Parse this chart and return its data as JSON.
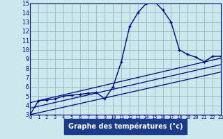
{
  "xlabel": "Graphe des températures (°c)",
  "bg_color": "#cde8ec",
  "line_color": "#00008b",
  "grid_color": "#9bbfc4",
  "xlabel_bg": "#2244aa",
  "xlabel_fg": "#ffffff",
  "ylim": [
    3,
    15
  ],
  "xlim": [
    0,
    23
  ],
  "yticks": [
    3,
    4,
    5,
    6,
    7,
    8,
    9,
    10,
    11,
    12,
    13,
    14,
    15
  ],
  "xticks": [
    0,
    1,
    2,
    3,
    4,
    5,
    6,
    7,
    8,
    9,
    10,
    11,
    12,
    13,
    14,
    15,
    16,
    17,
    18,
    19,
    20,
    21,
    22,
    23
  ],
  "curve1_x": [
    0,
    1,
    2,
    3,
    4,
    5,
    6,
    7,
    8,
    9,
    10,
    11,
    12,
    13,
    14,
    15,
    16,
    17,
    18,
    19,
    20,
    21,
    22,
    23
  ],
  "curve1_y": [
    3.0,
    4.5,
    4.6,
    4.7,
    5.0,
    5.1,
    5.2,
    5.3,
    5.4,
    4.7,
    6.0,
    8.7,
    12.5,
    14.0,
    15.0,
    15.2,
    14.3,
    13.0,
    10.0,
    9.5,
    9.2,
    8.7,
    9.3,
    9.3
  ],
  "line2_x": [
    0,
    23
  ],
  "line2_y": [
    3.0,
    7.6
  ],
  "line3_x": [
    0,
    23
  ],
  "line3_y": [
    4.3,
    9.1
  ],
  "line4_x": [
    0,
    23
  ],
  "line4_y": [
    3.7,
    8.4
  ]
}
